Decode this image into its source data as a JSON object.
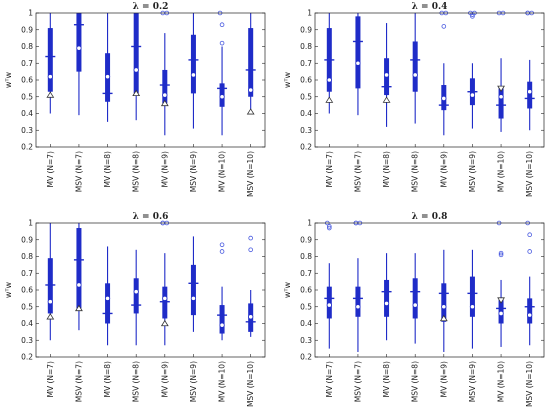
{
  "colors": {
    "box": "#1f2cc8",
    "outlier": "#4a5be0",
    "marker": "#333333",
    "axis": "#222222"
  },
  "chart_data": [
    {
      "type": "box",
      "title": "λ = 0.2",
      "ylabel": "wᵀw",
      "ylim": [
        0.2,
        1.0
      ],
      "yticks": [
        0.2,
        0.3,
        0.4,
        0.5,
        0.6,
        0.7,
        0.8,
        0.9,
        1
      ],
      "categories": [
        "MV (N=7)",
        "MSV (N=7)",
        "MV (N=8)",
        "MSV (N=8)",
        "MV (N=9)",
        "MSV (N=9)",
        "MV (N=10)",
        "MSV (N=10)"
      ],
      "boxes": [
        {
          "min": 0.4,
          "q1": 0.53,
          "median": 0.74,
          "q3": 0.91,
          "max": 1.0,
          "mean": 0.62,
          "marker": 0.51,
          "marker_type": "triangle-up",
          "outliers": []
        },
        {
          "min": 0.39,
          "q1": 0.65,
          "median": 0.93,
          "q3": 1.0,
          "max": 1.0,
          "mean": 0.79,
          "marker": null,
          "marker_type": null,
          "outliers": []
        },
        {
          "min": 0.35,
          "q1": 0.47,
          "median": 0.52,
          "q3": 0.76,
          "max": 1.0,
          "mean": 0.62,
          "marker": null,
          "marker_type": null,
          "outliers": []
        },
        {
          "min": 0.36,
          "q1": 0.52,
          "median": 0.8,
          "q3": 1.0,
          "max": 1.0,
          "mean": 0.66,
          "marker": 0.52,
          "marker_type": "triangle-up",
          "outliers": []
        },
        {
          "min": 0.27,
          "q1": 0.46,
          "median": 0.57,
          "q3": 0.66,
          "max": 0.88,
          "mean": 0.51,
          "marker": 0.46,
          "marker_type": "triangle-up",
          "outliers": [
            1.0,
            1.0
          ]
        },
        {
          "min": 0.31,
          "q1": 0.52,
          "median": 0.72,
          "q3": 0.87,
          "max": 1.0,
          "mean": 0.63,
          "marker": null,
          "marker_type": null,
          "outliers": []
        },
        {
          "min": 0.27,
          "q1": 0.44,
          "median": 0.55,
          "q3": 0.58,
          "max": 0.8,
          "mean": 0.5,
          "marker": null,
          "marker_type": null,
          "outliers": [
            1.0,
            0.93,
            0.82
          ]
        },
        {
          "min": 0.4,
          "q1": 0.5,
          "median": 0.66,
          "q3": 0.91,
          "max": 1.0,
          "mean": 0.54,
          "marker": 0.41,
          "marker_type": "triangle-up",
          "outliers": []
        }
      ]
    },
    {
      "type": "box",
      "title": "λ = 0.4",
      "ylabel": "wᵀw",
      "ylim": [
        0.2,
        1.0
      ],
      "yticks": [
        0.2,
        0.3,
        0.4,
        0.5,
        0.6,
        0.7,
        0.8,
        0.9,
        1
      ],
      "categories": [
        "MV (N=7)",
        "MSV (N=7)",
        "MV (N=8)",
        "MSV (N=8)",
        "MV (N=9)",
        "MSV (N=9)",
        "MV (N=10)",
        "MSV (N=10)"
      ],
      "boxes": [
        {
          "min": 0.4,
          "q1": 0.53,
          "median": 0.72,
          "q3": 0.91,
          "max": 1.0,
          "mean": 0.6,
          "marker": 0.48,
          "marker_type": "triangle-up",
          "outliers": []
        },
        {
          "min": 0.39,
          "q1": 0.55,
          "median": 0.83,
          "q3": 0.98,
          "max": 1.0,
          "mean": 0.7,
          "marker": null,
          "marker_type": null,
          "outliers": []
        },
        {
          "min": 0.32,
          "q1": 0.51,
          "median": 0.56,
          "q3": 0.73,
          "max": 0.94,
          "mean": 0.63,
          "marker": 0.48,
          "marker_type": "triangle-up",
          "outliers": []
        },
        {
          "min": 0.34,
          "q1": 0.53,
          "median": 0.72,
          "q3": 0.83,
          "max": 1.0,
          "mean": 0.63,
          "marker": null,
          "marker_type": null,
          "outliers": []
        },
        {
          "min": 0.27,
          "q1": 0.42,
          "median": 0.45,
          "q3": 0.57,
          "max": 0.7,
          "mean": 0.49,
          "marker": null,
          "marker_type": null,
          "outliers": [
            1.0,
            1.0,
            0.92
          ]
        },
        {
          "min": 0.31,
          "q1": 0.45,
          "median": 0.53,
          "q3": 0.61,
          "max": 0.7,
          "mean": 0.51,
          "marker": null,
          "marker_type": null,
          "outliers": [
            1.0,
            1.0,
            0.99,
            0.98
          ]
        },
        {
          "min": 0.29,
          "q1": 0.37,
          "median": 0.45,
          "q3": 0.55,
          "max": 0.73,
          "mean": 0.5,
          "marker": 0.55,
          "marker_type": "triangle-down",
          "outliers": [
            1.0,
            1.0
          ]
        },
        {
          "min": 0.3,
          "q1": 0.43,
          "median": 0.49,
          "q3": 0.59,
          "max": 0.72,
          "mean": 0.53,
          "marker": null,
          "marker_type": null,
          "outliers": [
            1.0,
            1.0,
            1.0
          ]
        }
      ]
    },
    {
      "type": "box",
      "title": "λ = 0.6",
      "ylabel": "wᵀw",
      "ylim": [
        0.2,
        1.0
      ],
      "yticks": [
        0.2,
        0.3,
        0.4,
        0.5,
        0.6,
        0.7,
        0.8,
        0.9,
        1
      ],
      "categories": [
        "MV (N=7)",
        "MSV (N=7)",
        "MV (N=8)",
        "MSV (N=8)",
        "MV (N=9)",
        "MSV (N=9)",
        "MV (N=10)",
        "MSV (N=10)"
      ],
      "boxes": [
        {
          "min": 0.3,
          "q1": 0.46,
          "median": 0.63,
          "q3": 0.79,
          "max": 1.0,
          "mean": 0.53,
          "marker": 0.44,
          "marker_type": "triangle-up",
          "outliers": []
        },
        {
          "min": 0.36,
          "q1": 0.49,
          "median": 0.78,
          "q3": 0.97,
          "max": 1.0,
          "mean": 0.63,
          "marker": 0.49,
          "marker_type": "triangle-up",
          "outliers": []
        },
        {
          "min": 0.27,
          "q1": 0.4,
          "median": 0.46,
          "q3": 0.64,
          "max": 0.86,
          "mean": 0.55,
          "marker": null,
          "marker_type": null,
          "outliers": []
        },
        {
          "min": 0.27,
          "q1": 0.46,
          "median": 0.51,
          "q3": 0.67,
          "max": 0.84,
          "mean": 0.59,
          "marker": null,
          "marker_type": null,
          "outliers": []
        },
        {
          "min": 0.27,
          "q1": 0.43,
          "median": 0.53,
          "q3": 0.62,
          "max": 0.82,
          "mean": 0.55,
          "marker": 0.4,
          "marker_type": "triangle-up",
          "outliers": [
            1.0,
            1.0,
            1.0
          ]
        },
        {
          "min": 0.35,
          "q1": 0.45,
          "median": 0.64,
          "q3": 0.75,
          "max": 0.92,
          "mean": 0.55,
          "marker": null,
          "marker_type": null,
          "outliers": []
        },
        {
          "min": 0.3,
          "q1": 0.34,
          "median": 0.45,
          "q3": 0.51,
          "max": 0.62,
          "mean": 0.39,
          "marker": null,
          "marker_type": null,
          "outliers": [
            0.87,
            0.83
          ]
        },
        {
          "min": 0.32,
          "q1": 0.35,
          "median": 0.41,
          "q3": 0.52,
          "max": 0.6,
          "mean": 0.44,
          "marker": null,
          "marker_type": null,
          "outliers": [
            0.91,
            0.84
          ]
        }
      ]
    },
    {
      "type": "box",
      "title": "λ = 0.8",
      "ylabel": "wᵀw",
      "ylim": [
        0.2,
        1.0
      ],
      "yticks": [
        0.2,
        0.3,
        0.4,
        0.5,
        0.6,
        0.7,
        0.8,
        0.9,
        1
      ],
      "categories": [
        "MV (N=7)",
        "MSV (N=7)",
        "MV (N=8)",
        "MSV (N=8)",
        "MV (N=9)",
        "MSV (N=9)",
        "MV (N=10)",
        "MSV (N=10)"
      ],
      "boxes": [
        {
          "min": 0.25,
          "q1": 0.43,
          "median": 0.55,
          "q3": 0.62,
          "max": 0.76,
          "mean": 0.51,
          "marker": null,
          "marker_type": null,
          "outliers": [
            1.0,
            0.98,
            0.97
          ]
        },
        {
          "min": 0.23,
          "q1": 0.44,
          "median": 0.55,
          "q3": 0.62,
          "max": 0.79,
          "mean": 0.5,
          "marker": null,
          "marker_type": null,
          "outliers": [
            1.0,
            1.0,
            1.0
          ]
        },
        {
          "min": 0.3,
          "q1": 0.44,
          "median": 0.59,
          "q3": 0.66,
          "max": 0.82,
          "mean": 0.52,
          "marker": null,
          "marker_type": null,
          "outliers": []
        },
        {
          "min": 0.28,
          "q1": 0.43,
          "median": 0.59,
          "q3": 0.67,
          "max": 0.82,
          "mean": 0.51,
          "marker": null,
          "marker_type": null,
          "outliers": []
        },
        {
          "min": 0.23,
          "q1": 0.41,
          "median": 0.58,
          "q3": 0.64,
          "max": 0.84,
          "mean": 0.5,
          "marker": 0.43,
          "marker_type": "triangle-up",
          "outliers": []
        },
        {
          "min": 0.25,
          "q1": 0.44,
          "median": 0.58,
          "q3": 0.68,
          "max": 0.84,
          "mean": 0.5,
          "marker": null,
          "marker_type": null,
          "outliers": []
        },
        {
          "min": 0.26,
          "q1": 0.4,
          "median": 0.49,
          "q3": 0.54,
          "max": 0.66,
          "mean": 0.46,
          "marker": 0.54,
          "marker_type": "triangle-down",
          "outliers": [
            1.0,
            0.82,
            0.81
          ]
        },
        {
          "min": 0.27,
          "q1": 0.4,
          "median": 0.5,
          "q3": 0.55,
          "max": 0.68,
          "mean": 0.45,
          "marker": null,
          "marker_type": null,
          "outliers": [
            1.0,
            0.93,
            0.83
          ]
        }
      ]
    }
  ]
}
